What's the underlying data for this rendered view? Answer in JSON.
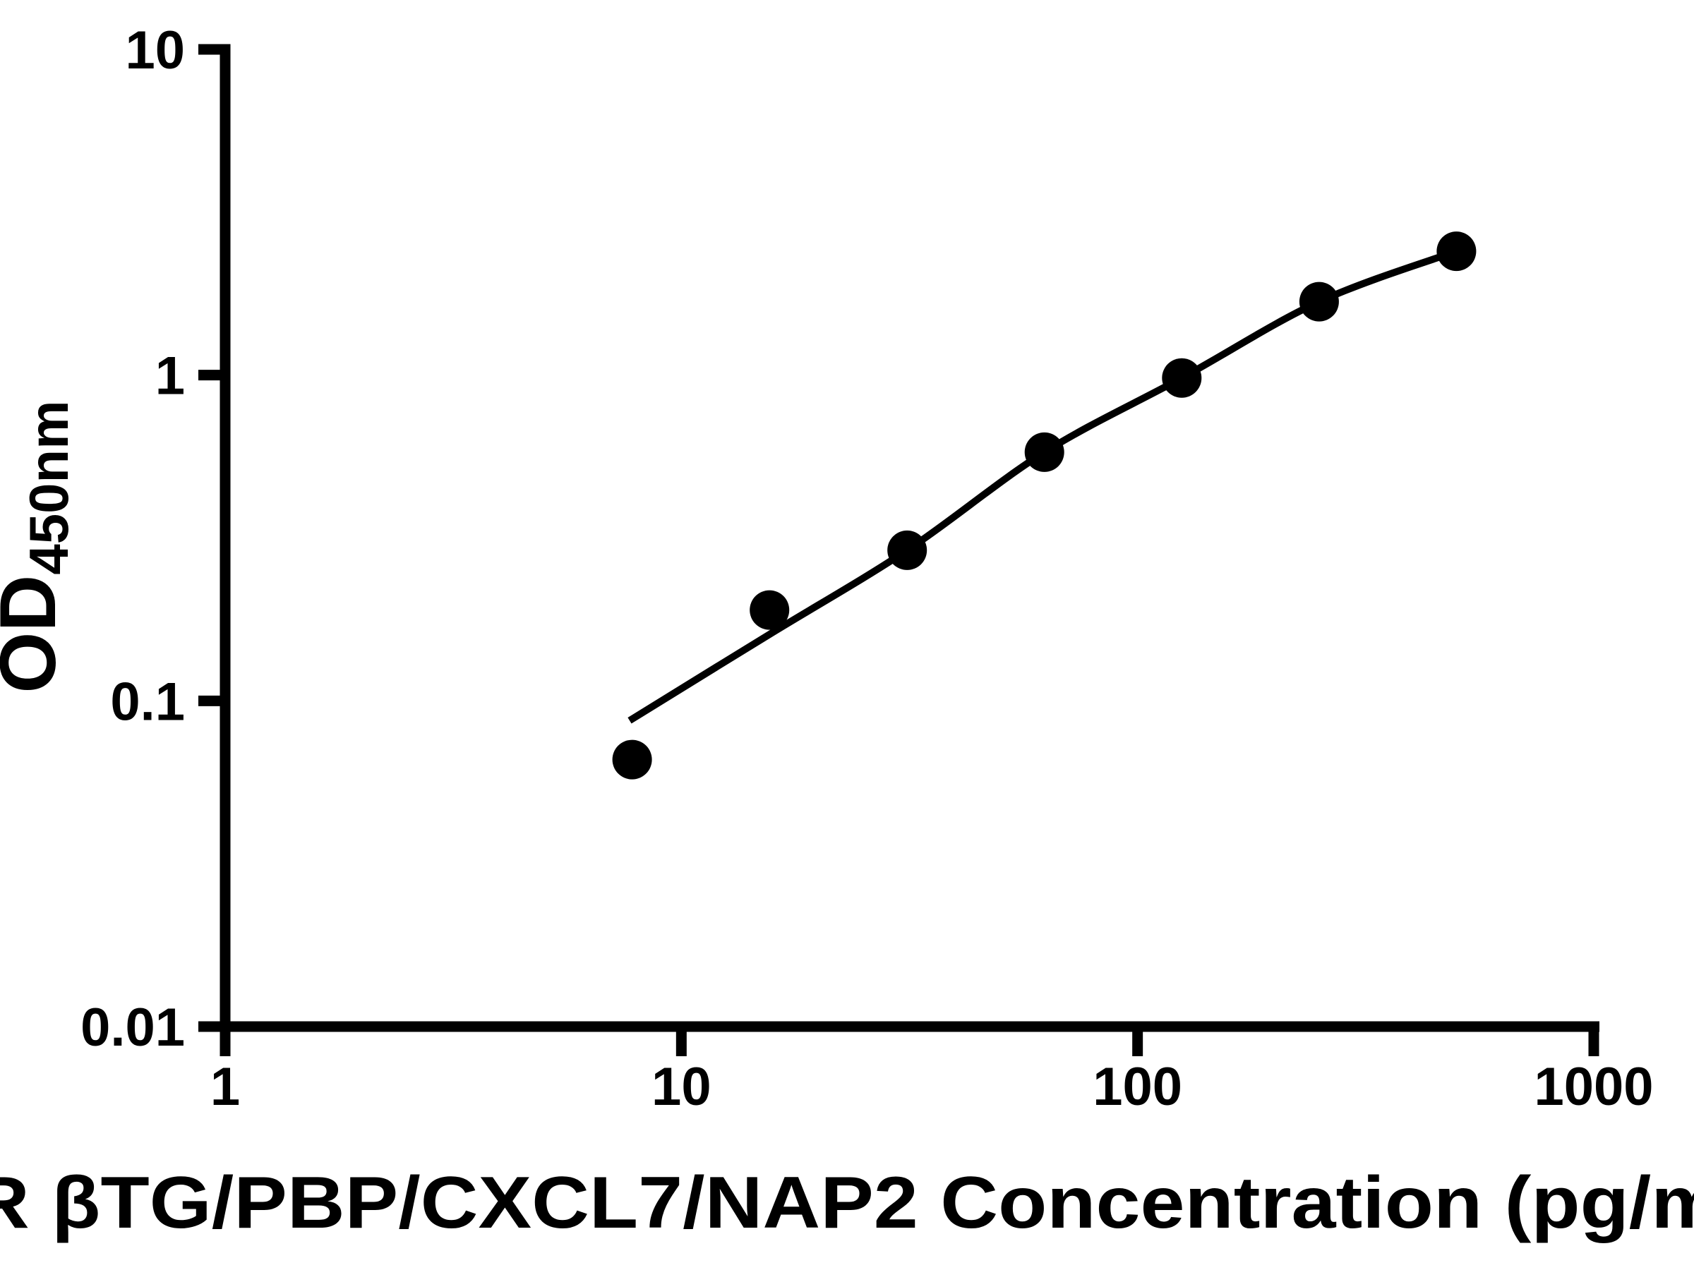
{
  "figure": {
    "background_color": "#ffffff",
    "foreground_color": "#000000"
  },
  "chart_data": {
    "type": "scatter",
    "title": "",
    "xlabel": "R βTG/PBP/CXCL7/NAP2 Concentration (pg/m",
    "ylabel_main": "OD",
    "ylabel_sub": "450nm",
    "x_scale": "log",
    "y_scale": "log",
    "xlim": [
      1,
      1000
    ],
    "ylim": [
      0.01,
      10
    ],
    "x_ticks": [
      1,
      10,
      100,
      1000
    ],
    "x_tick_labels": [
      "1",
      "10",
      "100",
      "1000"
    ],
    "y_ticks": [
      10,
      1,
      0.1,
      0.01
    ],
    "y_tick_labels": [
      "10",
      "1",
      "0.1",
      "0.01"
    ],
    "grid": false,
    "legend": null,
    "marker_color": "#000000",
    "line_color": "#000000",
    "series": [
      {
        "name": "standard-points",
        "type": "scatter",
        "marker": "filled-circle",
        "x": [
          7.8,
          15.6,
          31.25,
          62.5,
          125,
          250,
          500
        ],
        "y": [
          0.066,
          0.19,
          0.29,
          0.58,
          0.98,
          1.68,
          2.4
        ]
      },
      {
        "name": "fit-curve",
        "type": "line",
        "x": [
          7.7,
          15.6,
          31.25,
          62.5,
          125,
          250,
          500
        ],
        "y": [
          0.087,
          0.16,
          0.29,
          0.58,
          0.98,
          1.68,
          2.4
        ]
      }
    ]
  }
}
